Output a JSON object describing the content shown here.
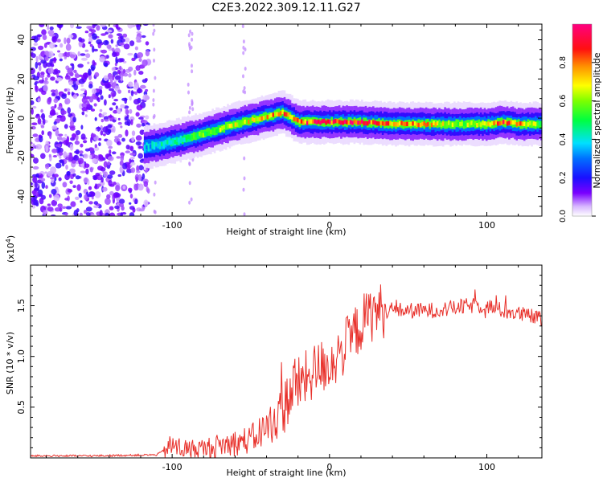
{
  "chart_data": [
    {
      "type": "heatmap",
      "title": "C2E3.2022.309.12.11.G27",
      "xlabel": "Height of straight line (km)",
      "ylabel": "Frequency (Hz)",
      "xlim": [
        -190,
        135
      ],
      "ylim": [
        -50,
        48
      ],
      "x_ticks": [
        -100,
        0,
        100
      ],
      "y_ticks": [
        -40,
        -20,
        0,
        20,
        40
      ],
      "colorbar": {
        "label": "Normalized spectral amplitude",
        "range": [
          0.0,
          1.0
        ],
        "ticks": [
          0.0,
          0.2,
          0.4,
          0.6,
          0.8
        ],
        "tick_labels": [
          "0.0",
          "0.2",
          "0.4",
          "0.6",
          "0.8"
        ]
      },
      "ridge": {
        "x": [
          -118,
          -100,
          -80,
          -60,
          -40,
          -30,
          -20,
          0,
          20,
          40,
          60,
          80,
          100,
          110,
          120,
          135
        ],
        "freq": [
          -15,
          -12,
          -8,
          -3,
          1,
          3,
          -2,
          -2,
          -2,
          -3,
          -3,
          -3,
          -3,
          -2,
          -3,
          -3
        ],
        "amplitude": [
          0.35,
          0.45,
          0.55,
          0.65,
          0.75,
          0.8,
          0.85,
          0.9,
          0.92,
          0.8,
          0.75,
          0.6,
          0.7,
          0.9,
          0.8,
          0.5
        ]
      },
      "noise_region": {
        "x_from": -190,
        "x_to": -115,
        "amplitude": 0.15
      }
    },
    {
      "type": "line",
      "xlabel": "Height of straight line (km)",
      "ylabel": "SNR (10 * v/v)",
      "y_multiplier_label": "(x10",
      "y_multiplier_exp": "4",
      "y_multiplier_close": ")",
      "xlim": [
        -190,
        135
      ],
      "ylim": [
        0,
        1.9
      ],
      "x_ticks": [
        -100,
        0,
        100
      ],
      "y_ticks": [
        0.5,
        1.0,
        1.5
      ],
      "y_tick_labels": [
        "0.5",
        "1.0",
        "1.5"
      ],
      "series": [
        {
          "color": "#e8302a",
          "x": [
            -190,
            -150,
            -110,
            -100,
            -90,
            -80,
            -70,
            -60,
            -50,
            -40,
            -30,
            -25,
            -20,
            -15,
            -10,
            -5,
            0,
            5,
            10,
            15,
            20,
            25,
            30,
            40,
            50,
            60,
            70,
            80,
            90,
            100,
            110,
            120,
            135
          ],
          "y": [
            0.02,
            0.02,
            0.03,
            0.12,
            0.08,
            0.09,
            0.12,
            0.15,
            0.18,
            0.3,
            0.45,
            0.65,
            0.72,
            0.78,
            0.85,
            0.9,
            0.93,
            1.0,
            1.1,
            1.2,
            1.32,
            1.4,
            1.45,
            1.46,
            1.45,
            1.45,
            1.46,
            1.48,
            1.5,
            1.5,
            1.45,
            1.42,
            1.37
          ]
        }
      ]
    }
  ]
}
